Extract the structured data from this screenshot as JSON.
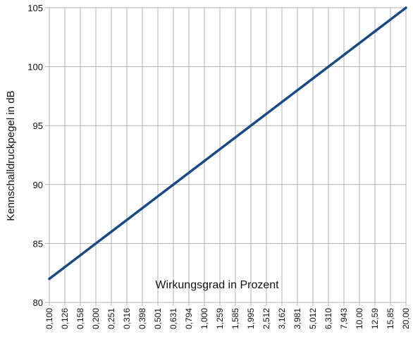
{
  "chart_data": {
    "type": "line",
    "ylabel": "Kennschalldruckpegel  in  dB",
    "annotation": "Wirkungsgrad in Prozent",
    "ylim": [
      80,
      105
    ],
    "yticks": [
      "80",
      "85",
      "90",
      "95",
      "100",
      "105"
    ],
    "x_scale": "log",
    "categories": [
      "0,100",
      "0,126",
      "0,158",
      "0,200",
      "0,251",
      "0,316",
      "0,398",
      "0,501",
      "0,631",
      "0,794",
      "1,000",
      "1,259",
      "1,585",
      "1,995",
      "2,512",
      "3,162",
      "3,981",
      "5,012",
      "6,310",
      "7,943",
      "10,00",
      "12,59",
      "15,85",
      "20,00"
    ],
    "series": [
      {
        "color": "#1a4a82",
        "values": [
          82,
          83,
          84,
          85,
          86,
          87,
          88,
          89,
          90,
          91,
          92,
          93,
          94,
          95,
          96,
          97,
          98,
          99,
          100,
          101,
          102,
          103,
          104,
          105
        ]
      }
    ],
    "grid": true
  }
}
